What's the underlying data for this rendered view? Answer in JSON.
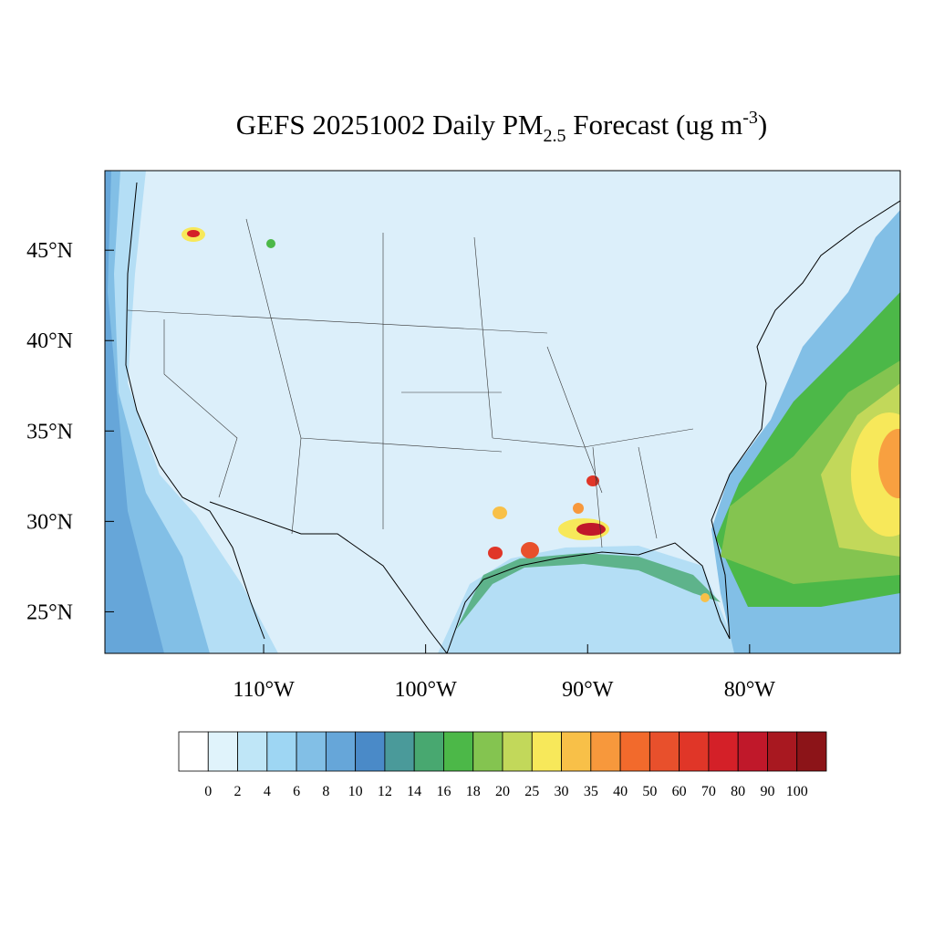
{
  "chart_data": {
    "type": "map",
    "title": {
      "prefix": "GEFS 20251002 Daily PM",
      "subscript": "2.5",
      "middle": " Forecast (ug m",
      "superscript": "-3",
      "suffix": ")"
    },
    "xlim": [
      -119.8,
      -70.7
    ],
    "ylim": [
      22.7,
      49.4
    ],
    "xticks": [
      {
        "value": -110,
        "label": "110°W"
      },
      {
        "value": -100,
        "label": "100°W"
      },
      {
        "value": -90,
        "label": "90°W"
      },
      {
        "value": -80,
        "label": "80°W"
      }
    ],
    "yticks": [
      {
        "value": 25,
        "label": "25°N"
      },
      {
        "value": 30,
        "label": "30°N"
      },
      {
        "value": 35,
        "label": "35°N"
      },
      {
        "value": 40,
        "label": "40°N"
      },
      {
        "value": 45,
        "label": "45°N"
      }
    ],
    "colorbar": {
      "levels": [
        0,
        2,
        4,
        6,
        8,
        10,
        12,
        14,
        16,
        18,
        20,
        25,
        30,
        35,
        40,
        50,
        60,
        70,
        80,
        90,
        100
      ],
      "colors": [
        "#ffffff",
        "#e0f3fb",
        "#bfe6f7",
        "#9ed6f3",
        "#82bfe6",
        "#66a6d9",
        "#4a8ac8",
        "#4a9a9a",
        "#48a870",
        "#4cb848",
        "#84c450",
        "#c2d85a",
        "#f7e85a",
        "#f8c048",
        "#f7983c",
        "#f26a2c",
        "#e8502c",
        "#e03628",
        "#d42028",
        "#c0182a",
        "#a81820",
        "#8c1418"
      ]
    }
  }
}
